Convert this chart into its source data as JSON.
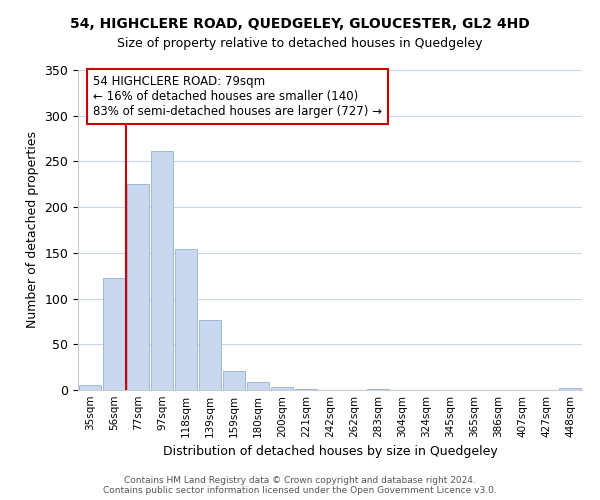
{
  "title": "54, HIGHCLERE ROAD, QUEDGELEY, GLOUCESTER, GL2 4HD",
  "subtitle": "Size of property relative to detached houses in Quedgeley",
  "xlabel": "Distribution of detached houses by size in Quedgeley",
  "ylabel": "Number of detached properties",
  "bar_color": "#c8d8ee",
  "bar_edge_color": "#a0b8d8",
  "background_color": "#ffffff",
  "grid_color": "#c8d4e8",
  "categories": [
    "35sqm",
    "56sqm",
    "77sqm",
    "97sqm",
    "118sqm",
    "139sqm",
    "159sqm",
    "180sqm",
    "200sqm",
    "221sqm",
    "242sqm",
    "262sqm",
    "283sqm",
    "304sqm",
    "324sqm",
    "345sqm",
    "365sqm",
    "386sqm",
    "407sqm",
    "427sqm",
    "448sqm"
  ],
  "values": [
    6,
    122,
    225,
    261,
    154,
    77,
    21,
    9,
    3,
    1,
    0,
    0,
    1,
    0,
    0,
    0,
    0,
    0,
    0,
    0,
    2
  ],
  "ylim": [
    0,
    350
  ],
  "yticks": [
    0,
    50,
    100,
    150,
    200,
    250,
    300,
    350
  ],
  "property_line_color": "#cc0000",
  "annotation_title": "54 HIGHCLERE ROAD: 79sqm",
  "annotation_line1": "← 16% of detached houses are smaller (140)",
  "annotation_line2": "83% of semi-detached houses are larger (727) →",
  "annotation_box_color": "#ffffff",
  "annotation_box_edge": "#cc0000",
  "footer_line1": "Contains HM Land Registry data © Crown copyright and database right 2024.",
  "footer_line2": "Contains public sector information licensed under the Open Government Licence v3.0."
}
